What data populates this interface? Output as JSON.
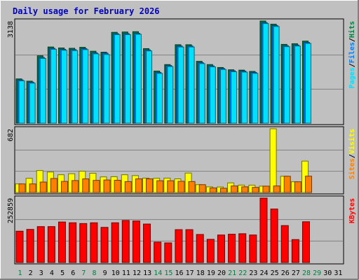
{
  "chart_data": {
    "type": "bar",
    "title": "Daily usage for February 2026",
    "days": [
      "1",
      "2",
      "3",
      "4",
      "5",
      "6",
      "7",
      "8",
      "9",
      "10",
      "11",
      "12",
      "13",
      "14",
      "15",
      "16",
      "17",
      "18",
      "19",
      "20",
      "21",
      "22",
      "23",
      "24",
      "25",
      "26",
      "27",
      "28",
      "29",
      "30",
      "31"
    ],
    "weekend_days": [
      "1",
      "7",
      "8",
      "14",
      "15",
      "21",
      "22",
      "28",
      "29"
    ],
    "panels": [
      {
        "id": "hits-files-pages",
        "ymax_label": "3138",
        "ymax": 3138,
        "side_labels": [
          "Pages",
          "Files",
          "Hits"
        ],
        "series": [
          {
            "name": "Hits",
            "color": "#008040",
            "values": [
              1360,
              1290,
              2070,
              2340,
              2310,
              2300,
              2330,
              2210,
              2180,
              2790,
              2800,
              2810,
              2290,
              1600,
              1800,
              2410,
              2410,
              1900,
              1800,
              1710,
              1640,
              1630,
              1590,
              3138,
              3040,
              2420,
              2440,
              2520
            ]
          },
          {
            "name": "Files",
            "color": "#0080ff",
            "values": [
              1330,
              1260,
              2020,
              2300,
              2270,
              2260,
              2290,
              2160,
              2150,
              2750,
              2750,
              2760,
              2250,
              1560,
              1770,
              2370,
              2370,
              1860,
              1760,
              1680,
              1610,
              1600,
              1560,
              3090,
              3000,
              2380,
              2400,
              2480
            ]
          },
          {
            "name": "Pages",
            "color": "#00e0ff",
            "values": [
              1300,
              1230,
              1990,
              2270,
              2240,
              2230,
              2260,
              2130,
              2110,
              2720,
              2720,
              2730,
              2220,
              1530,
              1740,
              2340,
              2340,
              1830,
              1730,
              1650,
              1580,
              1570,
              1530,
              3060,
              2970,
              2350,
              2370,
              2450
            ]
          }
        ]
      },
      {
        "id": "visits-sites",
        "ymax_label": "682",
        "ymax": 682,
        "side_labels": [
          "Sites",
          "Visits"
        ],
        "series": [
          {
            "name": "Visits",
            "color": "#ffff00",
            "values": [
              92,
              152,
              235,
              219,
              190,
              201,
              228,
              206,
              167,
              169,
              190,
              181,
              154,
              152,
              154,
              146,
              208,
              84,
              61,
              59,
              103,
              79,
              78,
              68,
              682,
              174,
              115,
              336
            ]
          },
          {
            "name": "Sites",
            "color": "#ff8000",
            "values": [
              92,
              92,
              112,
              150,
              119,
              128,
              146,
              130,
              134,
              131,
              117,
              146,
              146,
              126,
              126,
              120,
              117,
              84,
              49,
              45,
              70,
              61,
              55,
              68,
              70,
              174,
              115,
              175
            ]
          }
        ]
      },
      {
        "id": "kbytes",
        "ymax_label": "252859",
        "ymax": 252859,
        "side_labels": [
          "KBytes"
        ],
        "series": [
          {
            "name": "KBytes",
            "color": "#ff0000",
            "values": [
              123000,
              130000,
              141000,
              141000,
              159000,
              156000,
              153000,
              156000,
              138000,
              156000,
              165000,
              163000,
              151000,
              80000,
              77000,
              129000,
              129000,
              110000,
              91000,
              108000,
              111000,
              113000,
              108000,
              252859,
              210000,
              145000,
              90000,
              160000
            ]
          }
        ]
      }
    ]
  }
}
